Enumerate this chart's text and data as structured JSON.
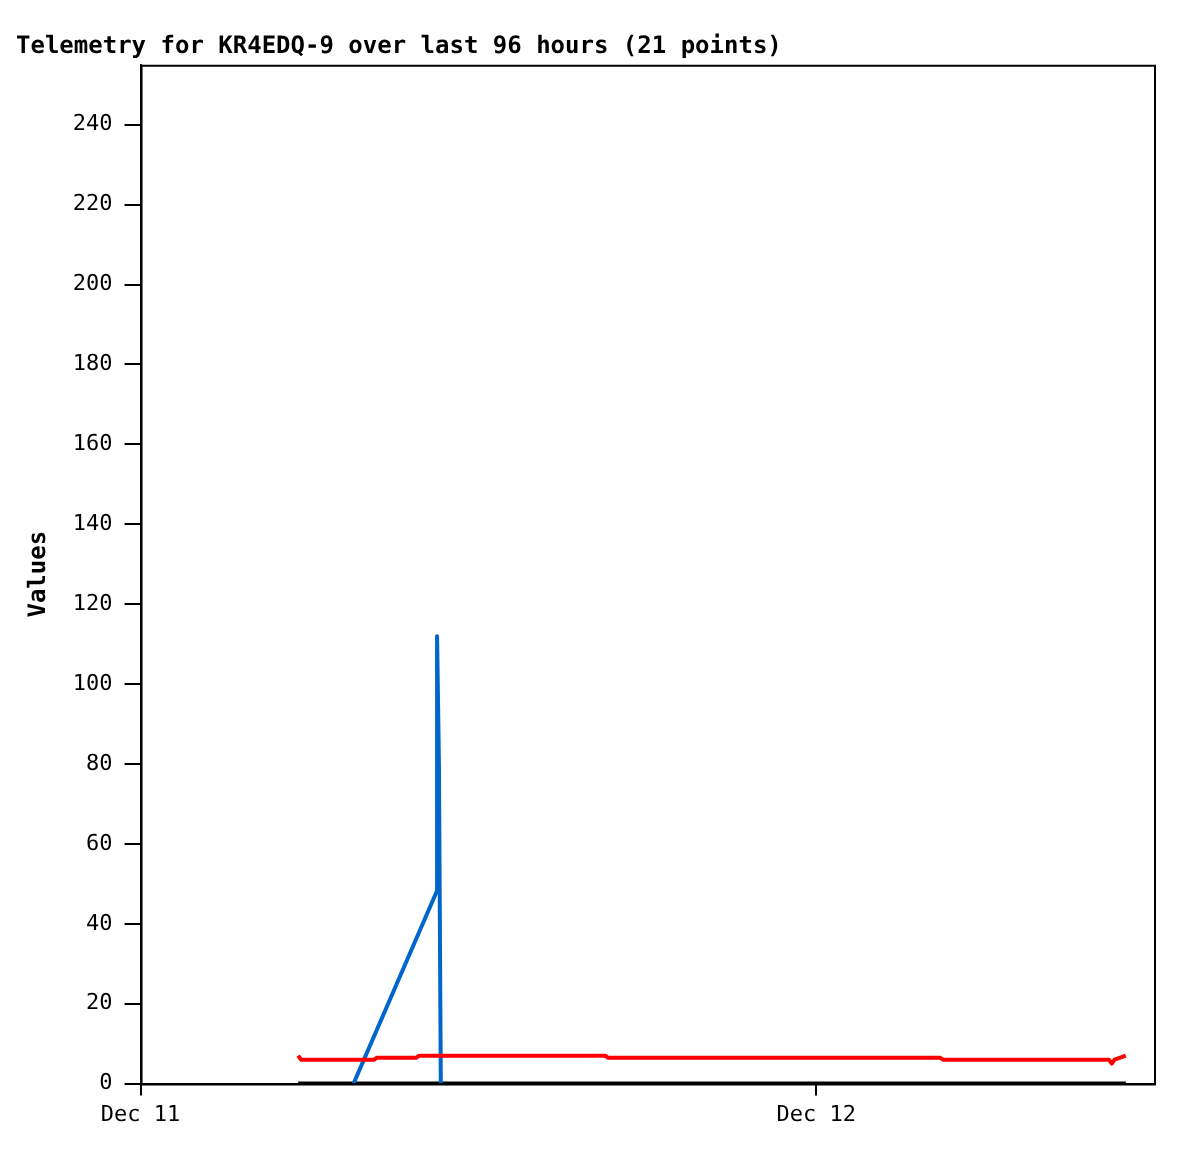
{
  "chart_data": {
    "type": "line",
    "title": "Telemetry for KR4EDQ-9 over last 96 hours (21 points)",
    "ylabel": "Values",
    "series": [
      {
        "color": "#ff0000",
        "x": [
          "--12-11T05:36",
          "--12-11T05:42",
          "--12-11T08:18",
          "--12-11T08:24",
          "--12-11T09:48",
          "--12-11T09:54",
          "--12-11T16:30",
          "--12-11T16:36",
          "--12-12T04:24",
          "--12-12T04:30",
          "--12-12T10:24",
          "--12-12T10:30",
          "--12-12T10:36",
          "--12-12T11:00"
        ],
        "values": [
          7,
          6,
          6,
          6.5,
          6.5,
          7,
          7,
          6.5,
          6.5,
          6,
          6,
          5,
          6,
          7
        ]
      },
      {
        "color": "#0066cc",
        "x": [
          "--12-11T07:34",
          "--12-11T10:31",
          "--12-11T10:32",
          "--12-11T10:36",
          "--12-11T10:40"
        ],
        "values": [
          0,
          48,
          112,
          80,
          0
        ]
      },
      {
        "color": "#000000",
        "x": [
          "--12-11T05:36",
          "--12-12T11:00"
        ],
        "values": [
          0,
          0
        ]
      }
    ],
    "xlim": [
      "--12-11",
      "--12-12T12:00"
    ],
    "xticks": [
      {
        "value": "--12-11",
        "label": "Dec 11"
      },
      {
        "value": "--12-12",
        "label": "Dec 12"
      }
    ],
    "ylim": [
      0,
      255
    ],
    "yticks": [
      0,
      20,
      40,
      60,
      80,
      100,
      120,
      140,
      160,
      180,
      200,
      220,
      240
    ],
    "grid": false,
    "legend": false,
    "marker": "none",
    "line_style": "solid"
  }
}
